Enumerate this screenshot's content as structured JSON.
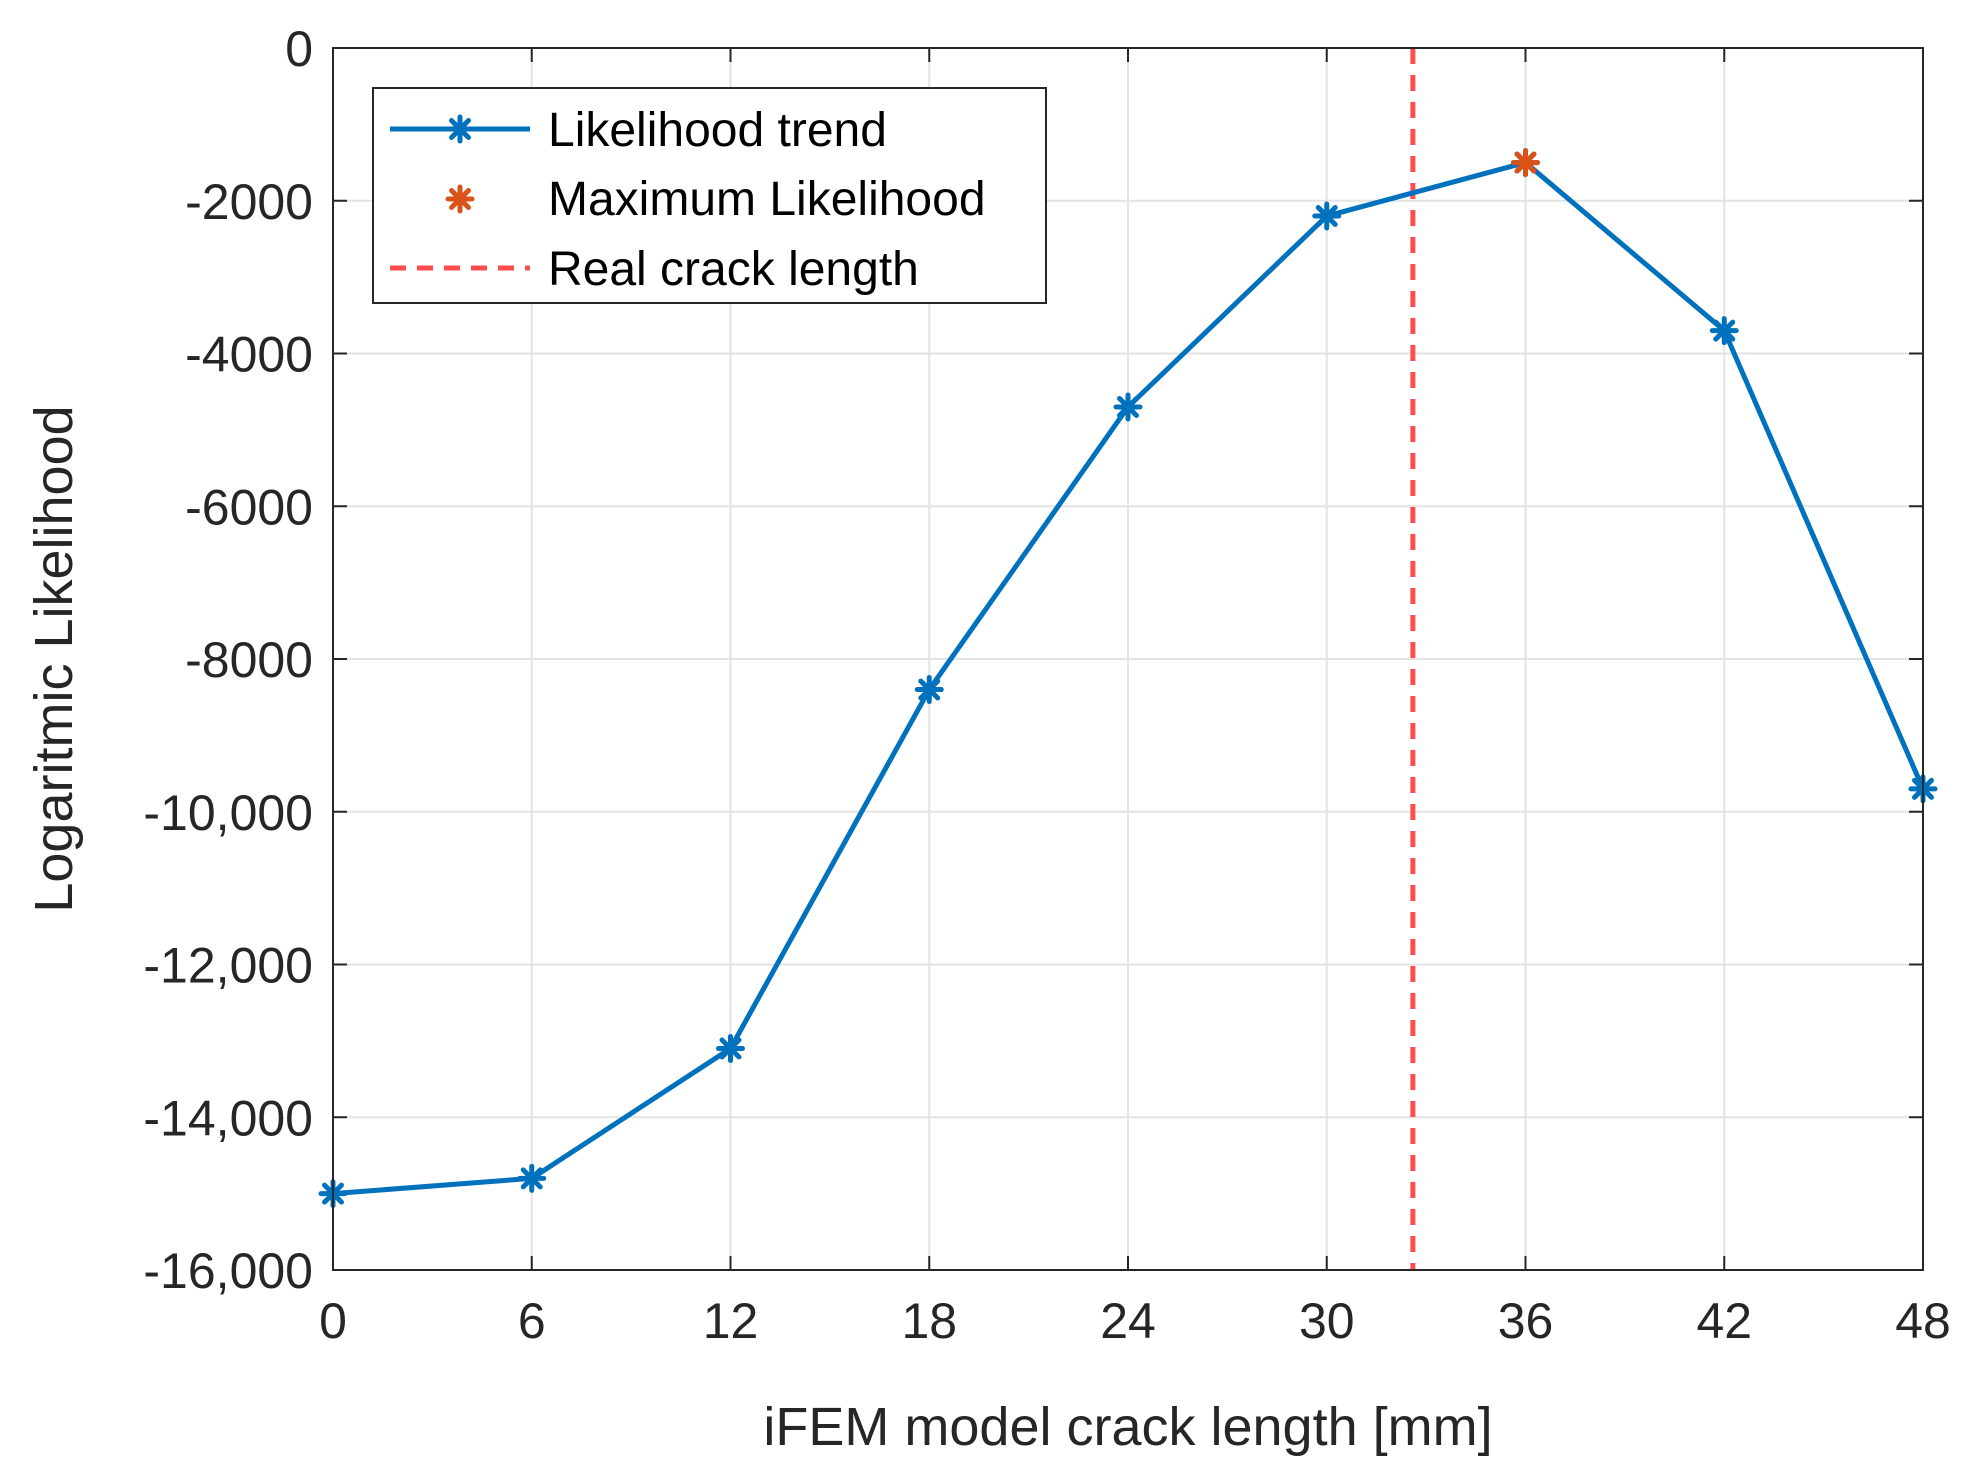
{
  "chart_data": {
    "type": "line",
    "title": "",
    "xlabel": "iFEM model crack length [mm]",
    "ylabel": "Logaritmic Likelihood",
    "xlim": [
      0,
      48
    ],
    "ylim": [
      -16000,
      0
    ],
    "grid": true,
    "legend_position": "top-left",
    "x_ticks": [
      0,
      6,
      12,
      18,
      24,
      30,
      36,
      42,
      48
    ],
    "x_tick_labels": [
      "0",
      "6",
      "12",
      "18",
      "24",
      "30",
      "36",
      "42",
      "48"
    ],
    "y_ticks": [
      0,
      -2000,
      -4000,
      -6000,
      -8000,
      -10000,
      -12000,
      -14000,
      -16000
    ],
    "y_tick_labels": [
      "0",
      "-2000",
      "-4000",
      "-6000",
      "-8000",
      "-10,000",
      "-12,000",
      "-14,000",
      "-16,000"
    ],
    "series": [
      {
        "name": "Likelihood trend",
        "style": "line-star",
        "color": "#0072BD",
        "x": [
          0,
          6,
          12,
          18,
          24,
          30,
          36,
          42,
          48
        ],
        "y": [
          -15000,
          -14800,
          -13100,
          -8400,
          -4700,
          -2200,
          -1500,
          -3700,
          -9700
        ]
      },
      {
        "name": "Maximum Likelihood",
        "style": "star",
        "color": "#D95319",
        "x": [
          36
        ],
        "y": [
          -1500
        ]
      },
      {
        "name": "Real crack length",
        "style": "dashed-vline",
        "color": "#FF4D4D",
        "x": [
          32.6
        ]
      }
    ]
  }
}
